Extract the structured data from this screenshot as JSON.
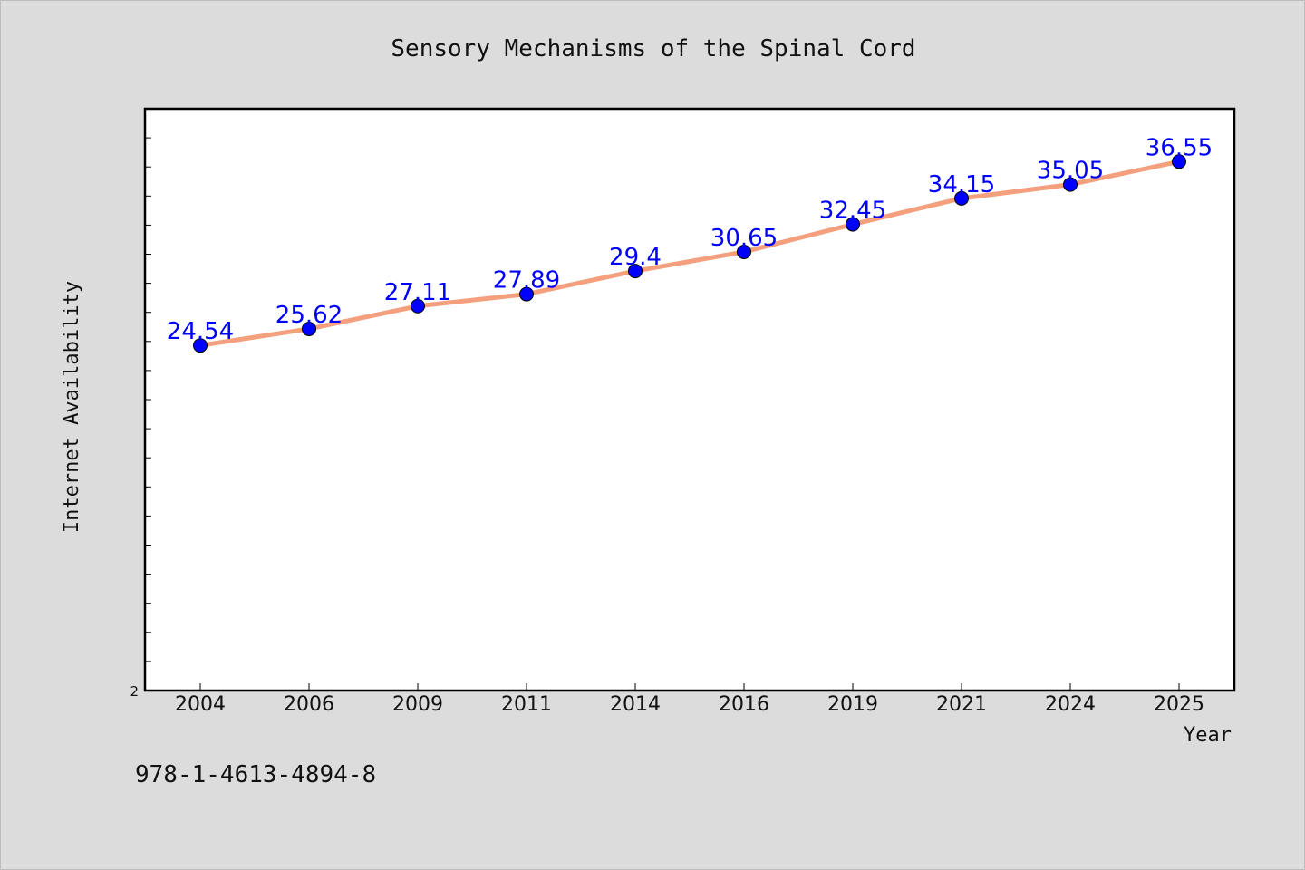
{
  "chart_data": {
    "type": "line",
    "title": "Sensory Mechanisms of the Spinal Cord",
    "xlabel": "Year",
    "ylabel": "Internet Availability",
    "categories": [
      "2004",
      "2006",
      "2009",
      "2011",
      "2014",
      "2016",
      "2019",
      "2021",
      "2024",
      "2025"
    ],
    "values": [
      24.54,
      25.62,
      27.11,
      27.89,
      29.4,
      30.65,
      32.45,
      34.15,
      35.05,
      36.55
    ],
    "data_labels": [
      "24.54",
      "25.62",
      "27.11",
      "27.89",
      "29.4",
      "30.65",
      "32.45",
      "34.15",
      "35.05",
      "36.55"
    ],
    "y_tick_labels": [
      "2"
    ],
    "ylim": [
      2,
      40
    ],
    "grid": false,
    "colors": {
      "line": "#f4a07e",
      "marker": "#0000ff",
      "data_label": "#0000ff"
    }
  },
  "footer": {
    "isbn": "978-1-4613-4894-8"
  }
}
